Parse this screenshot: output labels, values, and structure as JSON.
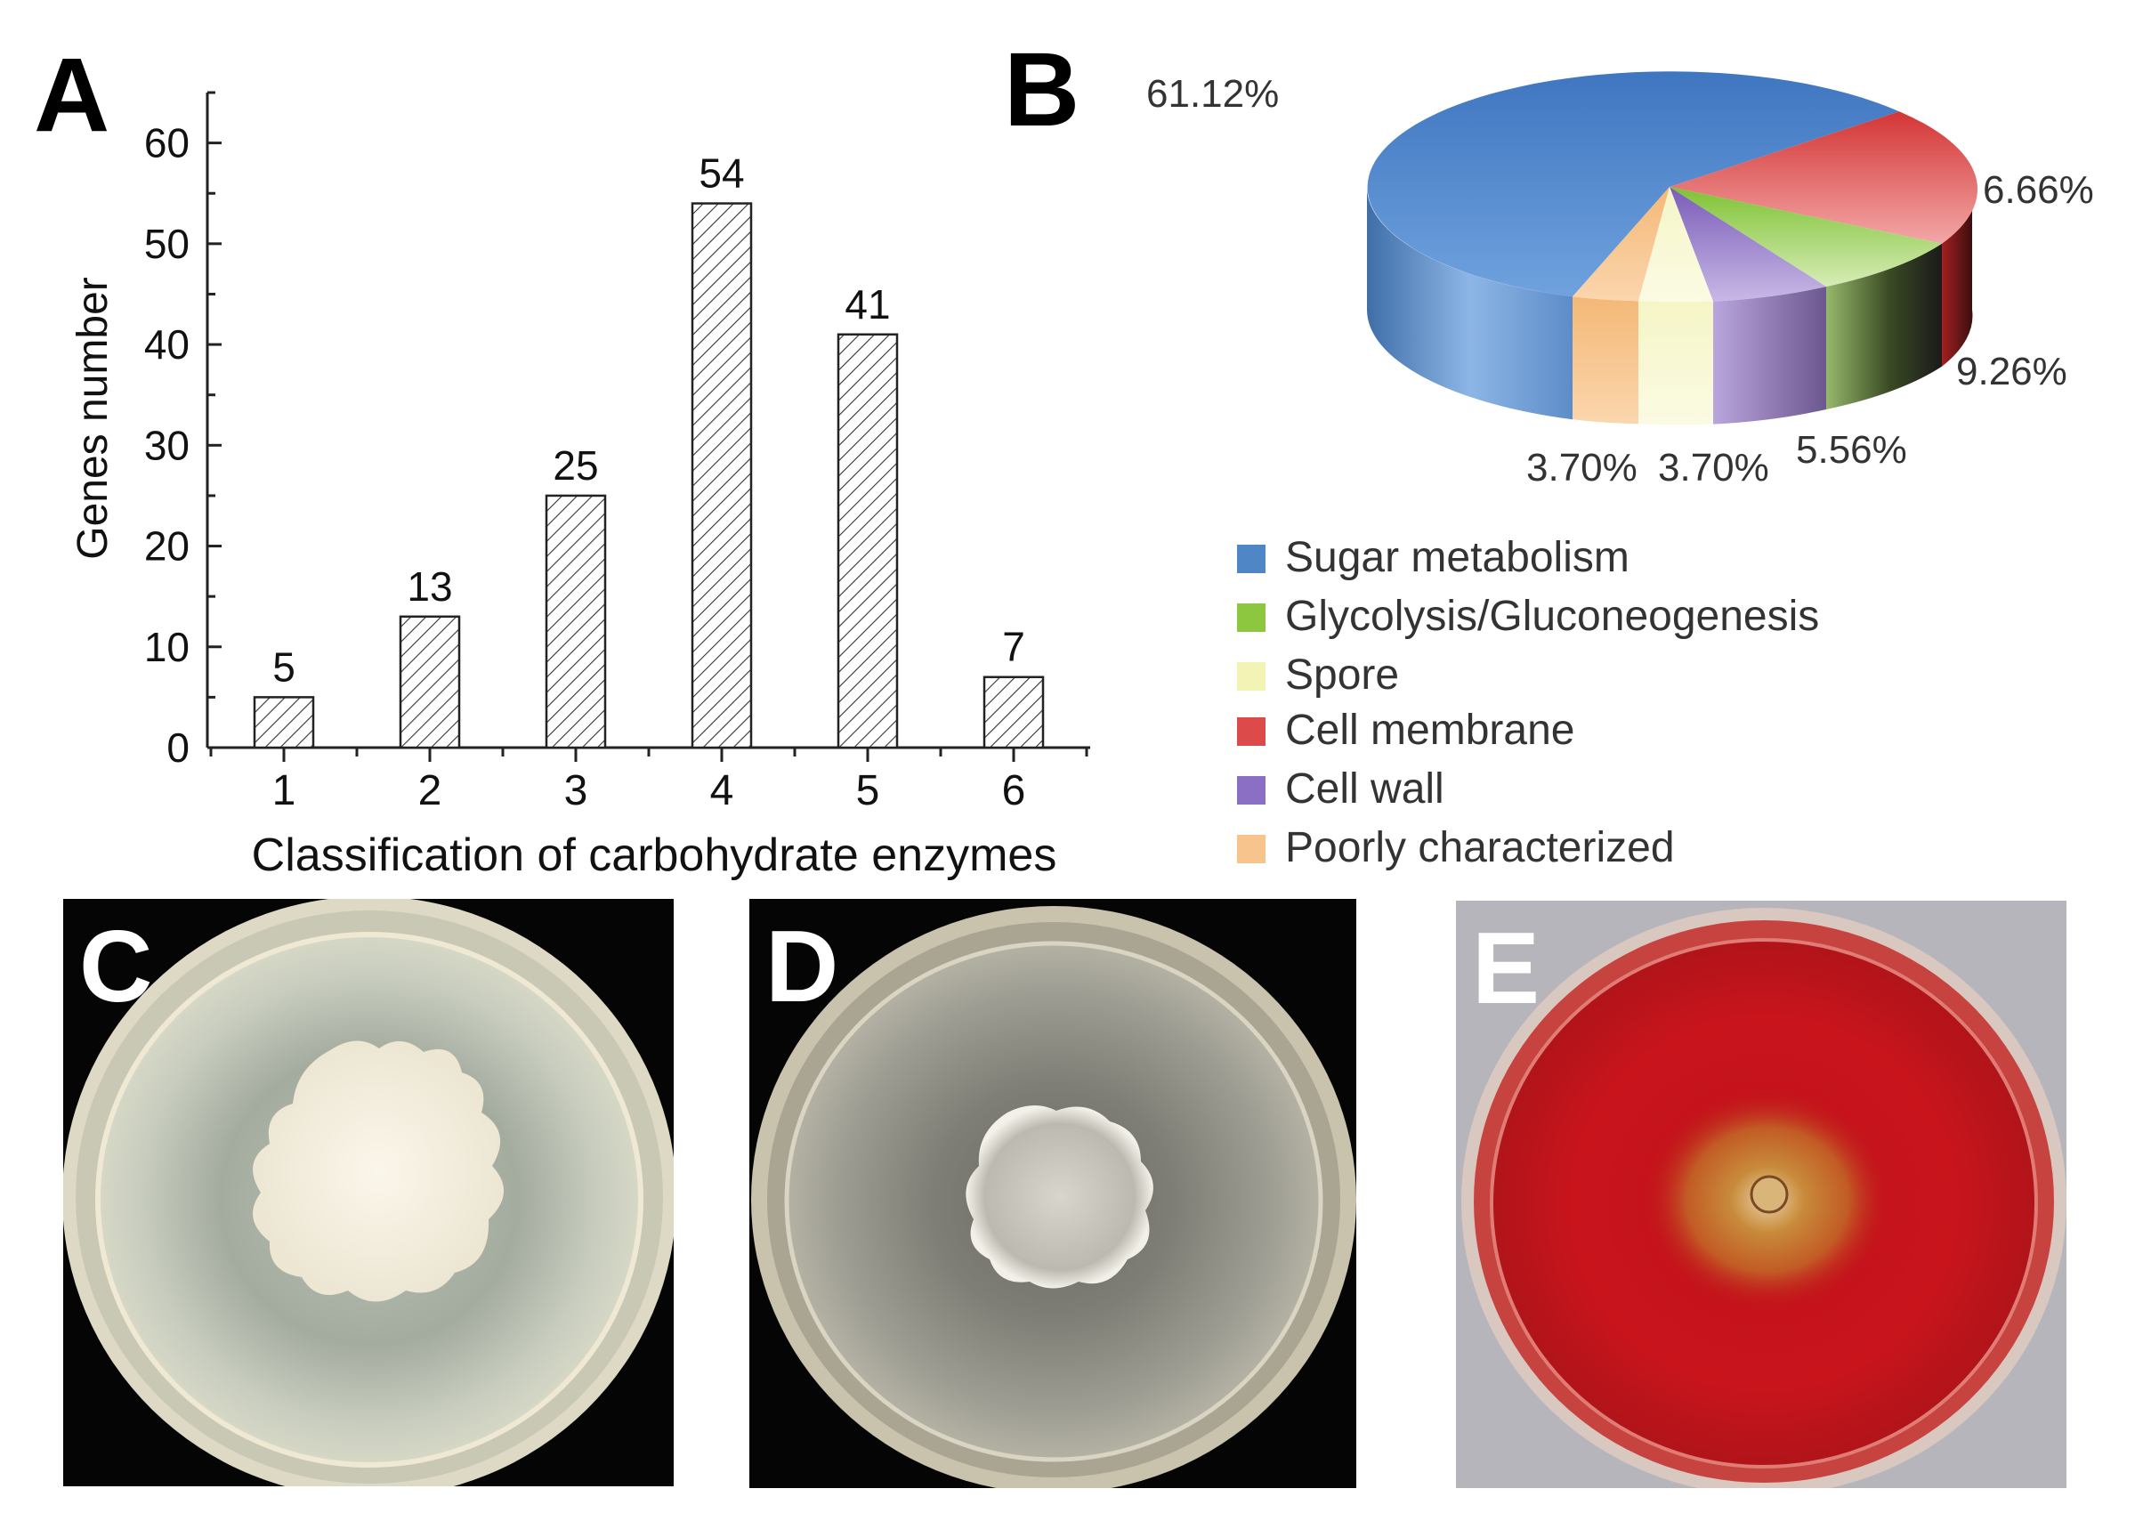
{
  "panels": {
    "a": "A",
    "b": "B",
    "c": "C",
    "d": "D",
    "e": "E"
  },
  "chart_data": [
    {
      "type": "bar",
      "categories": [
        "1",
        "2",
        "3",
        "4",
        "5",
        "6"
      ],
      "values": [
        5,
        13,
        25,
        54,
        41,
        7
      ],
      "data_labels": [
        "5",
        "13",
        "25",
        "54",
        "41",
        "7"
      ],
      "xlabel": "Classification of carbohydrate enzymes",
      "ylabel": "Genes number",
      "ylim": [
        0,
        65
      ],
      "yticks": [
        0,
        10,
        20,
        30,
        40,
        50,
        60
      ],
      "bar_fill": "diagonal-hatch",
      "grid": false
    },
    {
      "type": "pie",
      "style": "3d",
      "slices": [
        {
          "label": "Sugar metabolism",
          "value": 61.12,
          "label_text": "61.12%",
          "color": "#4f86c6"
        },
        {
          "label": "Cell membrane",
          "value": 6.66,
          "label_text": "6.66%",
          "color": "#dd4a4a"
        },
        {
          "label": "Glycolysis/Gluconeogenesis",
          "value": 9.26,
          "label_text": "9.26%",
          "color": "#8dc63f"
        },
        {
          "label": "Cell wall",
          "value": 5.56,
          "label_text": "5.56%",
          "color": "#8a6fc4"
        },
        {
          "label": "Spore",
          "value": 3.7,
          "label_text": "3.70%",
          "color": "#f3f3b5"
        },
        {
          "label": "Poorly characterized",
          "value": 3.7,
          "label_text": "3.70%",
          "color": "#f8c48e"
        }
      ],
      "legend": [
        {
          "label": "Sugar metabolism",
          "color": "#4f86c6"
        },
        {
          "label": "Glycolysis/Gluconeogenesis",
          "color": "#8dc63f"
        },
        {
          "label": "Spore",
          "color": "#f3f3b5"
        },
        {
          "label": "Cell membrane",
          "color": "#dd4a4a"
        },
        {
          "label": "Cell wall",
          "color": "#8a6fc4"
        },
        {
          "label": "Poorly characterized",
          "color": "#f8c48e"
        }
      ],
      "legend_position": "bottom-right"
    }
  ],
  "photos": [
    {
      "panel": "C",
      "background": "black",
      "plate": "clear agar",
      "colony": "white"
    },
    {
      "panel": "D",
      "background": "black",
      "plate": "grey agar",
      "colony": "white"
    },
    {
      "panel": "E",
      "background": "grey",
      "plate": "red agar",
      "colony": "orange halo"
    }
  ]
}
